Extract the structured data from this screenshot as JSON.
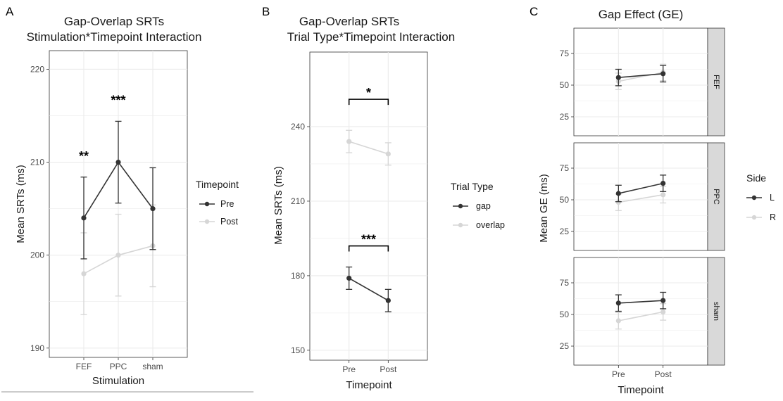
{
  "panels": {
    "A": {
      "letter": "A"
    },
    "B": {
      "letter": "B"
    },
    "C": {
      "letter": "C"
    }
  },
  "colors": {
    "dark": "#333333",
    "light": "#d6d6d6",
    "grid": "#ebebeb",
    "strip": "#d9d9d9"
  },
  "chart_data": [
    {
      "type": "line",
      "title": "Gap-Overlap SRTs",
      "subtitle": "Stimulation*Timepoint Interaction",
      "xlabel": "Stimulation",
      "ylabel": "Mean SRTs (ms)",
      "categories": [
        "FEF",
        "PPC",
        "sham"
      ],
      "ylim": [
        189,
        222
      ],
      "yticks": [
        190,
        200,
        210,
        220
      ],
      "legend": {
        "title": "Timepoint",
        "placement": "right"
      },
      "series": [
        {
          "name": "Pre",
          "color": "dark",
          "values": [
            204,
            210,
            205
          ],
          "err_low": [
            199.6,
            205.6,
            200.6
          ],
          "err_high": [
            208.4,
            214.4,
            209.4
          ]
        },
        {
          "name": "Post",
          "color": "light",
          "values": [
            198,
            200,
            201
          ],
          "err_low": [
            193.6,
            195.6,
            196.6
          ],
          "err_high": [
            202.4,
            204.4,
            205.4
          ]
        }
      ],
      "annotations": [
        {
          "text": "**",
          "category": "FEF",
          "y": 210.2
        },
        {
          "text": "***",
          "category": "PPC",
          "y": 216.2
        }
      ]
    },
    {
      "type": "line",
      "title": "Gap-Overlap SRTs",
      "subtitle": "Trial Type*Timepoint Interaction",
      "xlabel": "Timepoint",
      "ylabel": "Mean SRTs (ms)",
      "categories": [
        "Pre",
        "Post"
      ],
      "ylim": [
        146,
        270
      ],
      "yticks": [
        150,
        180,
        210,
        240
      ],
      "legend": {
        "title": "Trial Type",
        "placement": "right"
      },
      "series": [
        {
          "name": "gap",
          "color": "dark",
          "values": [
            179,
            170
          ],
          "err_low": [
            174.5,
            165.5
          ],
          "err_high": [
            183.5,
            174.5
          ]
        },
        {
          "name": "overlap",
          "color": "light",
          "values": [
            234,
            229
          ],
          "err_low": [
            229.5,
            224.5
          ],
          "err_high": [
            238.5,
            233.5
          ]
        }
      ],
      "brackets": [
        {
          "text": "*",
          "y": 251
        },
        {
          "text": "***",
          "y": 192
        }
      ]
    },
    {
      "type": "line",
      "title": "Gap Effect (GE)",
      "xlabel": "Timepoint",
      "ylabel": "Mean GE (ms)",
      "categories": [
        "Pre",
        "Post"
      ],
      "ylim": [
        10,
        95
      ],
      "yticks": [
        25,
        50,
        75
      ],
      "legend": {
        "title": "Side",
        "placement": "right"
      },
      "facets": [
        {
          "label": "FEF",
          "series": [
            {
              "name": "L",
              "color": "dark",
              "values": [
                56,
                59
              ],
              "err": 6.5
            },
            {
              "name": "R",
              "color": "light",
              "values": [
                53,
                60
              ],
              "err": 6.5
            }
          ]
        },
        {
          "label": "PPC",
          "series": [
            {
              "name": "L",
              "color": "dark",
              "values": [
                55,
                63
              ],
              "err": 6.5
            },
            {
              "name": "R",
              "color": "light",
              "values": [
                48,
                54
              ],
              "err": 6.5
            }
          ]
        },
        {
          "label": "sham",
          "series": [
            {
              "name": "L",
              "color": "dark",
              "values": [
                59,
                61
              ],
              "err": 6.5
            },
            {
              "name": "R",
              "color": "light",
              "values": [
                45,
                52
              ],
              "err": 6.5
            }
          ]
        }
      ]
    }
  ]
}
